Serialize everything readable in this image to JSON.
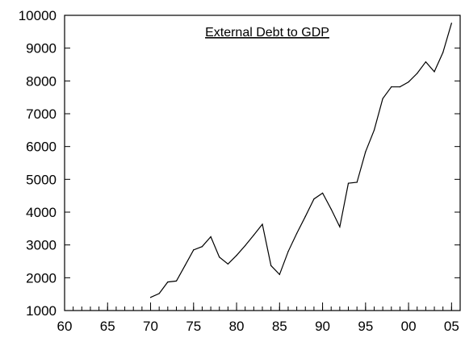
{
  "chart_data": {
    "type": "line",
    "title": "External Debt to GDP",
    "xlabel": "",
    "ylabel": "",
    "xlim": [
      1960,
      2006
    ],
    "ylim": [
      1000,
      10000
    ],
    "x_ticks": [
      {
        "value": 1960,
        "label": "60"
      },
      {
        "value": 1965,
        "label": "65"
      },
      {
        "value": 1970,
        "label": "70"
      },
      {
        "value": 1975,
        "label": "75"
      },
      {
        "value": 1980,
        "label": "80"
      },
      {
        "value": 1985,
        "label": "85"
      },
      {
        "value": 1990,
        "label": "90"
      },
      {
        "value": 1995,
        "label": "95"
      },
      {
        "value": 2000,
        "label": "00"
      },
      {
        "value": 2005,
        "label": "05"
      }
    ],
    "y_ticks": [
      {
        "value": 1000,
        "label": "1000"
      },
      {
        "value": 2000,
        "label": "2000"
      },
      {
        "value": 3000,
        "label": "3000"
      },
      {
        "value": 4000,
        "label": "4000"
      },
      {
        "value": 5000,
        "label": "5000"
      },
      {
        "value": 6000,
        "label": "6000"
      },
      {
        "value": 7000,
        "label": "7000"
      },
      {
        "value": 8000,
        "label": "8000"
      },
      {
        "value": 9000,
        "label": "9000"
      },
      {
        "value": 10000,
        "label": "10000"
      }
    ],
    "grid": false,
    "legend": "none",
    "line_color": "#000000",
    "series": [
      {
        "x": [
          1970,
          1971,
          1972,
          1973,
          1974,
          1975,
          1976,
          1977,
          1978,
          1979,
          1980,
          1981,
          1982,
          1983,
          1984,
          1985,
          1986,
          1987,
          1988,
          1989,
          1990,
          1991,
          1992,
          1993,
          1994,
          1995,
          1996,
          1997,
          1998,
          1999,
          2000,
          2001,
          2002,
          2003,
          2004,
          2005
        ],
        "values": [
          1400,
          1520,
          1870,
          1900,
          2370,
          2850,
          2950,
          3250,
          2630,
          2420,
          2680,
          2980,
          3300,
          3630,
          2370,
          2100,
          2800,
          3350,
          3870,
          4400,
          4580,
          4090,
          3550,
          4880,
          4910,
          5840,
          6500,
          7460,
          7820,
          7820,
          7970,
          8230,
          8580,
          8280,
          8870,
          9760
        ]
      }
    ]
  }
}
